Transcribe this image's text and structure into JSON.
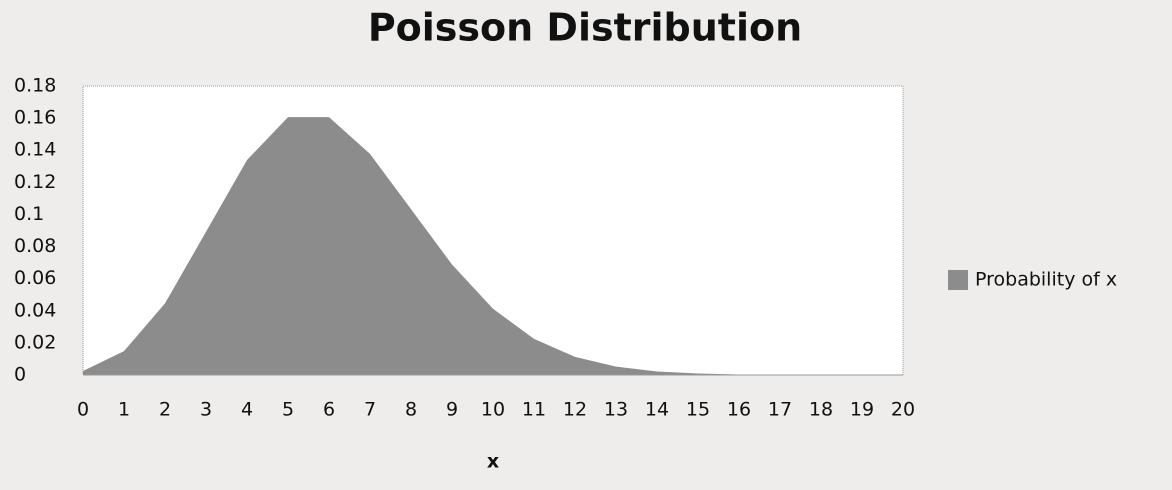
{
  "chart_data": {
    "type": "area",
    "title": "Poisson Distribution",
    "x_label": "x",
    "x": [
      0,
      1,
      2,
      3,
      4,
      5,
      6,
      7,
      8,
      9,
      10,
      11,
      12,
      13,
      14,
      15,
      16,
      17,
      18,
      19,
      20
    ],
    "series": [
      {
        "name": "Probability of x",
        "color": "#8c8c8c",
        "values": [
          0.0025,
          0.0149,
          0.0446,
          0.0892,
          0.1339,
          0.1606,
          0.1606,
          0.1377,
          0.1033,
          0.0688,
          0.0413,
          0.0225,
          0.0113,
          0.0052,
          0.0022,
          0.0009,
          0.0003,
          0.0001,
          0.0,
          0.0,
          0.0
        ]
      }
    ],
    "xlim": [
      0,
      20
    ],
    "xticks": [
      0,
      1,
      2,
      3,
      4,
      5,
      6,
      7,
      8,
      9,
      10,
      11,
      12,
      13,
      14,
      15,
      16,
      17,
      18,
      19,
      20
    ],
    "ylim": [
      0,
      0.18
    ],
    "yticks": [
      0,
      0.02,
      0.04,
      0.06,
      0.08,
      0.1,
      0.12,
      0.14,
      0.16,
      0.18
    ],
    "grid": false,
    "legend": "right"
  }
}
